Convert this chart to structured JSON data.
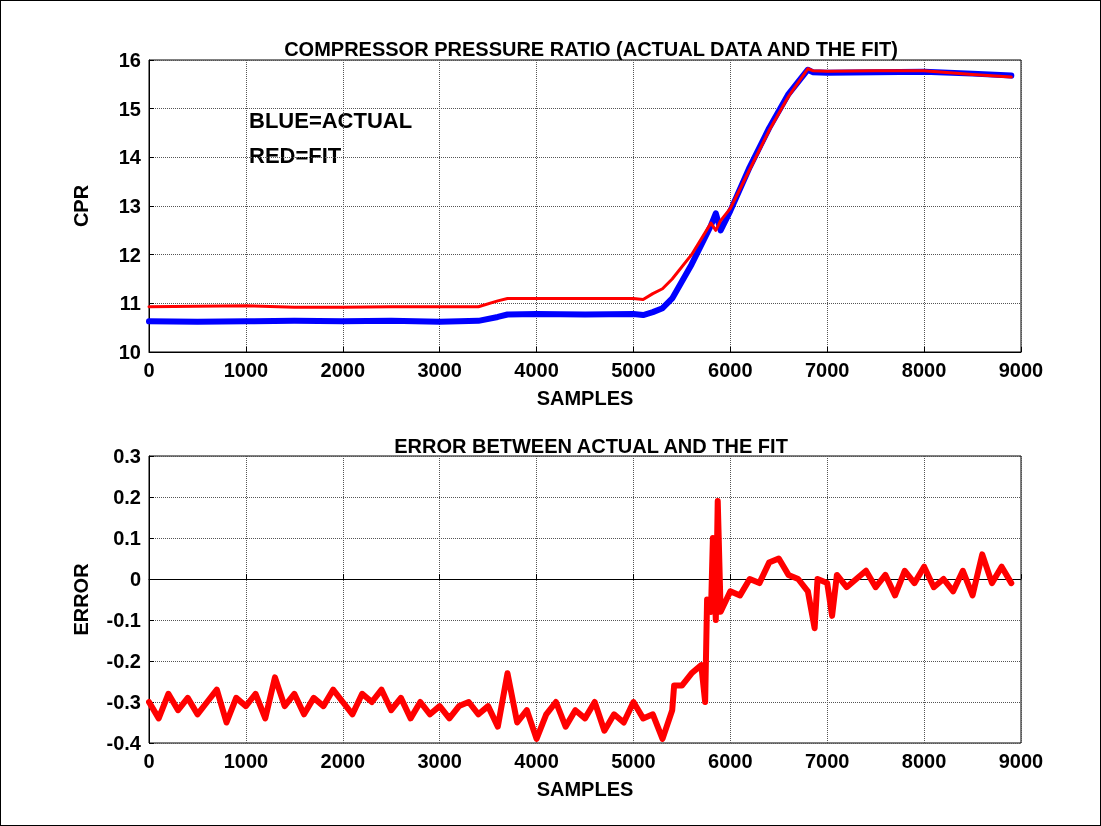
{
  "chart_data": [
    {
      "type": "line",
      "title": "COMPRESSOR PRESSURE RATIO (ACTUAL DATA AND THE FIT)",
      "xlabel": "SAMPLES",
      "ylabel": "CPR",
      "annotations": [
        "BLUE=ACTUAL",
        "RED=FIT"
      ],
      "x": [
        0,
        500,
        1000,
        1500,
        2000,
        2500,
        3000,
        3400,
        3600,
        3700,
        4000,
        4500,
        5000,
        5100,
        5200,
        5300,
        5400,
        5600,
        5800,
        5850,
        5900,
        6000,
        6200,
        6400,
        6600,
        6800,
        6850,
        7000,
        7500,
        8000,
        8500,
        8900
      ],
      "series": [
        {
          "color": "#0000ff",
          "values": [
            10.63,
            10.62,
            10.63,
            10.64,
            10.63,
            10.64,
            10.62,
            10.64,
            10.72,
            10.77,
            10.78,
            10.77,
            10.78,
            10.76,
            10.82,
            10.9,
            11.1,
            11.8,
            12.6,
            12.85,
            12.5,
            12.9,
            13.8,
            14.6,
            15.3,
            15.8,
            15.75,
            15.74,
            15.75,
            15.76,
            15.72,
            15.68
          ]
        },
        {
          "color": "#ff0000",
          "values": [
            10.93,
            10.94,
            10.95,
            10.92,
            10.92,
            10.93,
            10.93,
            10.93,
            11.05,
            11.1,
            11.1,
            11.1,
            11.1,
            11.08,
            11.2,
            11.3,
            11.5,
            12.0,
            12.65,
            12.5,
            12.7,
            12.95,
            13.75,
            14.55,
            15.25,
            15.82,
            15.78,
            15.77,
            15.78,
            15.78,
            15.7,
            15.65
          ]
        }
      ],
      "xlim": [
        0,
        9000
      ],
      "xticks": [
        0,
        1000,
        2000,
        3000,
        4000,
        5000,
        6000,
        7000,
        8000,
        9000
      ],
      "ylim": [
        10,
        16
      ],
      "yticks": [
        10,
        11,
        12,
        13,
        14,
        15,
        16
      ],
      "grid": true,
      "marker": "none",
      "legend": false
    },
    {
      "type": "line",
      "title": "ERROR BETWEEN ACTUAL AND THE FIT",
      "xlabel": "SAMPLES",
      "ylabel": "ERROR",
      "x": [
        0,
        100,
        200,
        300,
        400,
        500,
        600,
        700,
        800,
        900,
        1000,
        1100,
        1200,
        1300,
        1400,
        1500,
        1600,
        1700,
        1800,
        1900,
        2000,
        2100,
        2200,
        2300,
        2400,
        2500,
        2600,
        2700,
        2800,
        2900,
        3000,
        3100,
        3200,
        3300,
        3400,
        3500,
        3600,
        3700,
        3800,
        3900,
        4000,
        4100,
        4200,
        4300,
        4400,
        4500,
        4600,
        4700,
        4800,
        4900,
        5000,
        5100,
        5200,
        5300,
        5400,
        5420,
        5500,
        5600,
        5700,
        5740,
        5760,
        5800,
        5820,
        5850,
        5870,
        5900,
        6000,
        6100,
        6200,
        6300,
        6400,
        6500,
        6600,
        6700,
        6800,
        6870,
        6900,
        7000,
        7050,
        7100,
        7200,
        7300,
        7400,
        7500,
        7600,
        7700,
        7800,
        7900,
        8000,
        8100,
        8200,
        8300,
        8400,
        8500,
        8600,
        8700,
        8800,
        8900
      ],
      "series": [
        {
          "color": "#ff0000",
          "values": [
            -0.3,
            -0.34,
            -0.28,
            -0.32,
            -0.29,
            -0.33,
            -0.3,
            -0.27,
            -0.35,
            -0.29,
            -0.31,
            -0.28,
            -0.34,
            -0.24,
            -0.31,
            -0.28,
            -0.33,
            -0.29,
            -0.31,
            -0.27,
            -0.3,
            -0.33,
            -0.28,
            -0.3,
            -0.27,
            -0.32,
            -0.29,
            -0.34,
            -0.3,
            -0.33,
            -0.31,
            -0.34,
            -0.31,
            -0.3,
            -0.33,
            -0.31,
            -0.36,
            -0.23,
            -0.35,
            -0.32,
            -0.39,
            -0.33,
            -0.3,
            -0.36,
            -0.32,
            -0.34,
            -0.3,
            -0.37,
            -0.33,
            -0.35,
            -0.3,
            -0.34,
            -0.33,
            -0.39,
            -0.32,
            -0.26,
            -0.26,
            -0.23,
            -0.21,
            -0.3,
            -0.05,
            -0.08,
            0.1,
            -0.1,
            0.19,
            -0.08,
            -0.03,
            -0.04,
            0.0,
            -0.01,
            0.04,
            0.05,
            0.01,
            0.0,
            -0.03,
            -0.12,
            0.0,
            -0.01,
            -0.09,
            0.01,
            -0.02,
            0.0,
            0.02,
            -0.02,
            0.01,
            -0.04,
            0.02,
            -0.01,
            0.03,
            -0.02,
            0.0,
            -0.03,
            0.02,
            -0.04,
            0.06,
            -0.01,
            0.03,
            -0.01
          ]
        }
      ],
      "xlim": [
        0,
        9000
      ],
      "xticks": [
        0,
        1000,
        2000,
        3000,
        4000,
        5000,
        6000,
        7000,
        8000,
        9000
      ],
      "ylim": [
        -0.4,
        0.3
      ],
      "yticks": [
        -0.4,
        -0.3,
        -0.2,
        -0.1,
        0,
        0.1,
        0.2,
        0.3
      ],
      "grid": true,
      "marker": "none",
      "legend": false
    }
  ]
}
